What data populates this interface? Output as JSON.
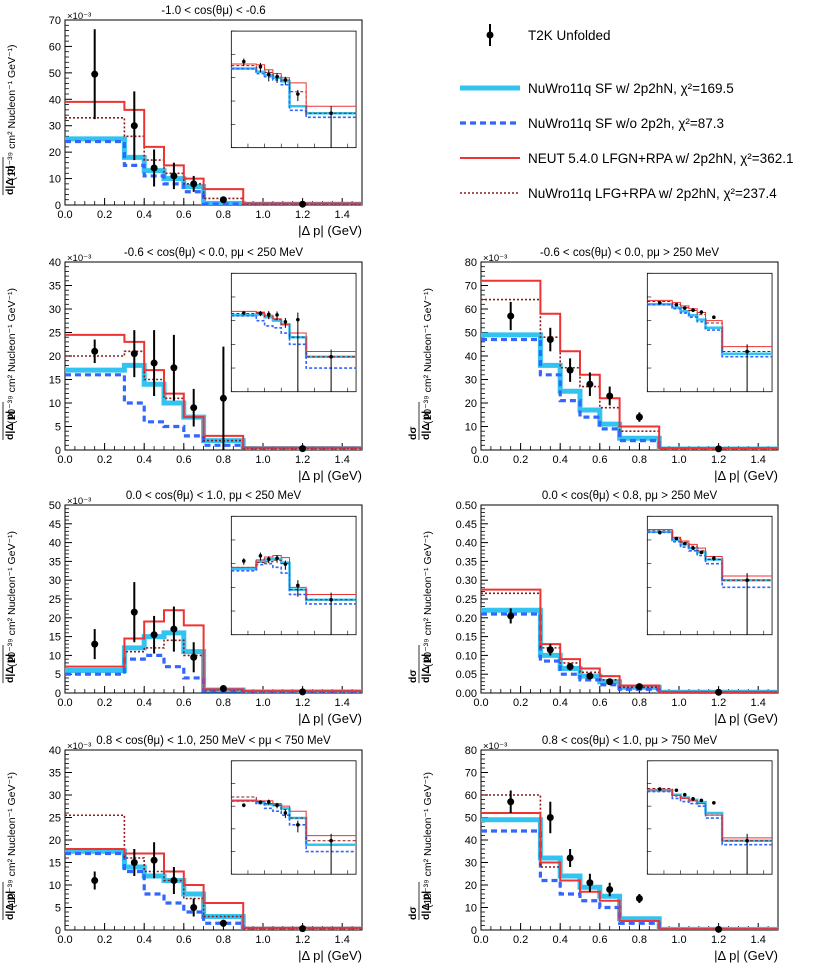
{
  "legend": {
    "entries": [
      {
        "label": "T2K Unfolded",
        "style": "data"
      },
      {
        "label": "NuWro11q SF w/ 2p2hN, χ²=169.5",
        "style": "thick",
        "color": "#33c3f0"
      },
      {
        "label": "NuWro11q SF w/o 2p2h, χ²=87.3",
        "style": "dashed",
        "color": "#3366ff"
      },
      {
        "label": "NEUT 5.4.0 LFGN+RPA w/ 2p2hN, χ²=362.1",
        "style": "solid",
        "color": "#ee3333"
      },
      {
        "label": "NuWro11q LFG+RPA w/ 2p2hN, χ²=237.4",
        "style": "dotted",
        "color": "#8b1a1a"
      }
    ]
  },
  "axis_labels": {
    "xlabel": "|Δ p| (GeV)",
    "ylabel_num": "dσ",
    "ylabel_den": "d|Δ p|",
    "ylabel_units": "(10⁻³⁹ cm² Nucleon⁻¹ GeV⁻¹)"
  },
  "chart_data": [
    {
      "type": "histogram",
      "title": "-1.0 < cos(θμ) < -0.6",
      "exponent": "×10⁻³",
      "xlim": [
        0,
        1.5
      ],
      "ylim": [
        0,
        70
      ],
      "yticks": [
        0,
        10,
        20,
        30,
        40,
        50,
        60,
        70
      ],
      "xticks": [
        0.0,
        0.2,
        0.4,
        0.6,
        0.8,
        1.0,
        1.2,
        1.4
      ],
      "bin_edges": [
        0,
        0.3,
        0.4,
        0.5,
        0.6,
        0.7,
        0.9,
        1.5
      ],
      "series": [
        {
          "name": "NuWro11q SF w/ 2p2hN",
          "values": [
            25,
            18,
            13,
            10,
            7,
            0.6,
            0.3
          ]
        },
        {
          "name": "NuWro11q SF w/o 2p2h",
          "values": [
            24,
            15,
            11,
            8,
            5,
            0.4,
            0.2
          ]
        },
        {
          "name": "NEUT 5.4.0 LFGN+RPA",
          "values": [
            39,
            36,
            22,
            15,
            10,
            6,
            0.6
          ]
        },
        {
          "name": "NuWro11q LFG+RPA",
          "values": [
            33,
            26,
            17,
            12,
            8,
            2.5,
            0.3
          ]
        }
      ],
      "data": {
        "x": [
          0.15,
          0.35,
          0.45,
          0.55,
          0.65,
          0.8,
          1.2
        ],
        "y": [
          49.5,
          30,
          14,
          11,
          8,
          2,
          0.3
        ],
        "err": [
          17,
          13,
          7,
          5,
          3,
          1,
          0.3
        ]
      }
    },
    {
      "type": "histogram",
      "title": "-0.6 < cos(θμ) < 0.0, pμ < 250 MeV",
      "exponent": "×10⁻³",
      "xlim": [
        0,
        1.5
      ],
      "ylim": [
        0,
        40
      ],
      "yticks": [
        0,
        5,
        10,
        15,
        20,
        25,
        30,
        35,
        40
      ],
      "xticks": [
        0.0,
        0.2,
        0.4,
        0.6,
        0.8,
        1.0,
        1.2,
        1.4
      ],
      "bin_edges": [
        0,
        0.3,
        0.4,
        0.5,
        0.6,
        0.7,
        0.9,
        1.5
      ],
      "series": [
        {
          "name": "NuWro11q SF w/ 2p2hN",
          "values": [
            17,
            18,
            14,
            10,
            7,
            2,
            0.3
          ]
        },
        {
          "name": "NuWro11q SF w/o 2p2h",
          "values": [
            16,
            10,
            6,
            5,
            3,
            1,
            0.1
          ]
        },
        {
          "name": "NEUT 5.4.0 LFGN+RPA",
          "values": [
            24.5,
            23,
            17,
            12,
            7,
            3,
            0.5
          ]
        },
        {
          "name": "NuWro11q LFG+RPA",
          "values": [
            20,
            21,
            15,
            11,
            7,
            2,
            0.3
          ]
        }
      ],
      "data": {
        "x": [
          0.15,
          0.35,
          0.45,
          0.55,
          0.65,
          0.8,
          1.2
        ],
        "y": [
          21,
          20.5,
          18.5,
          17.5,
          9,
          11,
          0.3
        ],
        "err": [
          2.5,
          5,
          7,
          7,
          4,
          11,
          0.3
        ]
      }
    },
    {
      "type": "histogram",
      "title": "-0.6 < cos(θμ) < 0.0, pμ > 250 MeV",
      "exponent": "×10⁻³",
      "xlim": [
        0,
        1.5
      ],
      "ylim": [
        0,
        80
      ],
      "yticks": [
        0,
        10,
        20,
        30,
        40,
        50,
        60,
        70,
        80
      ],
      "xticks": [
        0.0,
        0.2,
        0.4,
        0.6,
        0.8,
        1.0,
        1.2,
        1.4
      ],
      "bin_edges": [
        0,
        0.3,
        0.4,
        0.5,
        0.6,
        0.7,
        0.9,
        1.5
      ],
      "series": [
        {
          "name": "NuWro11q SF w/ 2p2hN",
          "values": [
            49,
            36,
            25,
            17,
            11,
            5,
            0.4
          ]
        },
        {
          "name": "NuWro11q SF w/o 2p2h",
          "values": [
            47,
            32,
            21,
            14,
            9,
            4,
            0.3
          ]
        },
        {
          "name": "NEUT 5.4.0 LFGN+RPA",
          "values": [
            72,
            58,
            42,
            32,
            22,
            10,
            0.8
          ]
        },
        {
          "name": "NuWro11q LFG+RPA",
          "values": [
            64,
            48,
            35,
            27,
            18,
            8,
            0.5
          ]
        }
      ],
      "data": {
        "x": [
          0.15,
          0.35,
          0.45,
          0.55,
          0.65,
          0.8,
          1.2
        ],
        "y": [
          57,
          47,
          34,
          28,
          23,
          14,
          0.5
        ],
        "err": [
          6,
          5,
          5,
          5,
          4,
          2,
          0.5
        ]
      }
    },
    {
      "type": "histogram",
      "title": "0.0 < cos(θμ) < 1.0, pμ < 250 MeV",
      "exponent": "×10⁻³",
      "xlim": [
        0,
        1.5
      ],
      "ylim": [
        0,
        50
      ],
      "yticks": [
        0,
        5,
        10,
        15,
        20,
        25,
        30,
        35,
        40,
        45,
        50
      ],
      "xticks": [
        0.0,
        0.2,
        0.4,
        0.6,
        0.8,
        1.0,
        1.2,
        1.4
      ],
      "bin_edges": [
        0,
        0.3,
        0.4,
        0.5,
        0.6,
        0.7,
        0.9,
        1.5
      ],
      "series": [
        {
          "name": "NuWro11q SF w/ 2p2hN",
          "values": [
            6,
            12,
            15,
            16,
            11,
            0.8,
            0.3
          ]
        },
        {
          "name": "NuWro11q SF w/o 2p2h",
          "values": [
            5,
            9,
            10,
            7,
            4,
            0.5,
            0.2
          ]
        },
        {
          "name": "NEUT 5.4.0 LFGN+RPA",
          "values": [
            7,
            14.5,
            19,
            22,
            18,
            1,
            0.5
          ]
        },
        {
          "name": "NuWro11q LFG+RPA",
          "values": [
            7,
            11,
            12,
            14,
            10,
            0.8,
            0.3
          ]
        }
      ],
      "data": {
        "x": [
          0.15,
          0.35,
          0.45,
          0.55,
          0.65,
          0.8,
          1.2
        ],
        "y": [
          13,
          21.5,
          15.5,
          17,
          9.5,
          1.2,
          0.3
        ],
        "err": [
          4,
          8,
          5,
          6,
          4,
          0.8,
          0.3
        ]
      }
    },
    {
      "type": "histogram",
      "title": "0.0 < cos(θμ) < 0.8, pμ > 250 MeV",
      "exponent": "",
      "xlim": [
        0,
        1.5
      ],
      "ylim": [
        0,
        0.5
      ],
      "yticks": [
        0,
        0.05,
        0.1,
        0.15,
        0.2,
        0.25,
        0.3,
        0.35,
        0.4,
        0.45,
        0.5
      ],
      "xticks": [
        0.0,
        0.2,
        0.4,
        0.6,
        0.8,
        1.0,
        1.2,
        1.4
      ],
      "bin_edges": [
        0,
        0.3,
        0.4,
        0.5,
        0.6,
        0.7,
        0.9,
        1.5
      ],
      "series": [
        {
          "name": "NuWro11q SF w/ 2p2hN",
          "values": [
            0.22,
            0.1,
            0.065,
            0.045,
            0.03,
            0.015,
            0.002
          ]
        },
        {
          "name": "NuWro11q SF w/o 2p2h",
          "values": [
            0.21,
            0.085,
            0.05,
            0.035,
            0.022,
            0.01,
            0.001
          ]
        },
        {
          "name": "NEUT 5.4.0 LFGN+RPA",
          "values": [
            0.275,
            0.13,
            0.09,
            0.065,
            0.045,
            0.02,
            0.003
          ]
        },
        {
          "name": "NuWro11q LFG+RPA",
          "values": [
            0.265,
            0.12,
            0.08,
            0.055,
            0.035,
            0.015,
            0.002
          ]
        }
      ],
      "data": {
        "x": [
          0.15,
          0.35,
          0.45,
          0.55,
          0.65,
          0.8,
          1.2
        ],
        "y": [
          0.205,
          0.115,
          0.07,
          0.045,
          0.03,
          0.017,
          0.002
        ],
        "err": [
          0.02,
          0.015,
          0.01,
          0.008,
          0.005,
          0.004,
          0.002
        ]
      }
    },
    {
      "type": "histogram",
      "title": "0.8 < cos(θμ) < 1.0, 250 MeV < pμ < 750 MeV",
      "exponent": "×10⁻³",
      "xlim": [
        0,
        1.5
      ],
      "ylim": [
        0,
        40
      ],
      "yticks": [
        0,
        5,
        10,
        15,
        20,
        25,
        30,
        35,
        40
      ],
      "xticks": [
        0.0,
        0.2,
        0.4,
        0.6,
        0.8,
        1.0,
        1.2,
        1.4
      ],
      "bin_edges": [
        0,
        0.3,
        0.4,
        0.5,
        0.6,
        0.7,
        0.9,
        1.5
      ],
      "series": [
        {
          "name": "NuWro11q SF w/ 2p2hN",
          "values": [
            17.5,
            14,
            12,
            11,
            8,
            3,
            0.2
          ]
        },
        {
          "name": "NuWro11q SF w/o 2p2h",
          "values": [
            17,
            13,
            8,
            6,
            4,
            1.5,
            0.1
          ]
        },
        {
          "name": "NEUT 5.4.0 LFGN+RPA",
          "values": [
            18,
            17,
            17,
            13,
            10,
            6,
            0.5
          ]
        },
        {
          "name": "NuWro11q LFG+RPA",
          "values": [
            25.5,
            16,
            13,
            11,
            7,
            3,
            0.3
          ]
        }
      ],
      "data": {
        "x": [
          0.15,
          0.35,
          0.45,
          0.55,
          0.65,
          0.8,
          1.2
        ],
        "y": [
          11,
          15,
          15.5,
          11,
          5,
          1.5,
          0.3
        ],
        "err": [
          2,
          3,
          4,
          3,
          2,
          0.8,
          0.3
        ]
      }
    },
    {
      "type": "histogram",
      "title": "0.8 < cos(θμ) < 1.0, pμ > 750 MeV",
      "exponent": "×10⁻³",
      "xlim": [
        0,
        1.5
      ],
      "ylim": [
        0,
        80
      ],
      "yticks": [
        0,
        10,
        20,
        30,
        40,
        50,
        60,
        70,
        80
      ],
      "xticks": [
        0.0,
        0.2,
        0.4,
        0.6,
        0.8,
        1.0,
        1.2,
        1.4
      ],
      "bin_edges": [
        0,
        0.3,
        0.4,
        0.5,
        0.6,
        0.7,
        0.9,
        1.5
      ],
      "series": [
        {
          "name": "NuWro11q SF w/ 2p2hN",
          "values": [
            49,
            32,
            24,
            19,
            15,
            5,
            0.3
          ]
        },
        {
          "name": "NuWro11q SF w/o 2p2h",
          "values": [
            44,
            22,
            16,
            13,
            10,
            3,
            0.2
          ]
        },
        {
          "name": "NEUT 5.4.0 LFGN+RPA",
          "values": [
            52,
            30,
            22,
            17,
            13,
            4,
            0.4
          ]
        },
        {
          "name": "NuWro11q LFG+RPA",
          "values": [
            60,
            28,
            22,
            17,
            13,
            4,
            0.3
          ]
        }
      ],
      "data": {
        "x": [
          0.15,
          0.35,
          0.45,
          0.55,
          0.65,
          0.8,
          1.2
        ],
        "y": [
          57,
          50,
          32,
          21,
          18,
          14,
          0.3
        ],
        "err": [
          5,
          7,
          4,
          4,
          3,
          2,
          0.3
        ]
      }
    }
  ]
}
